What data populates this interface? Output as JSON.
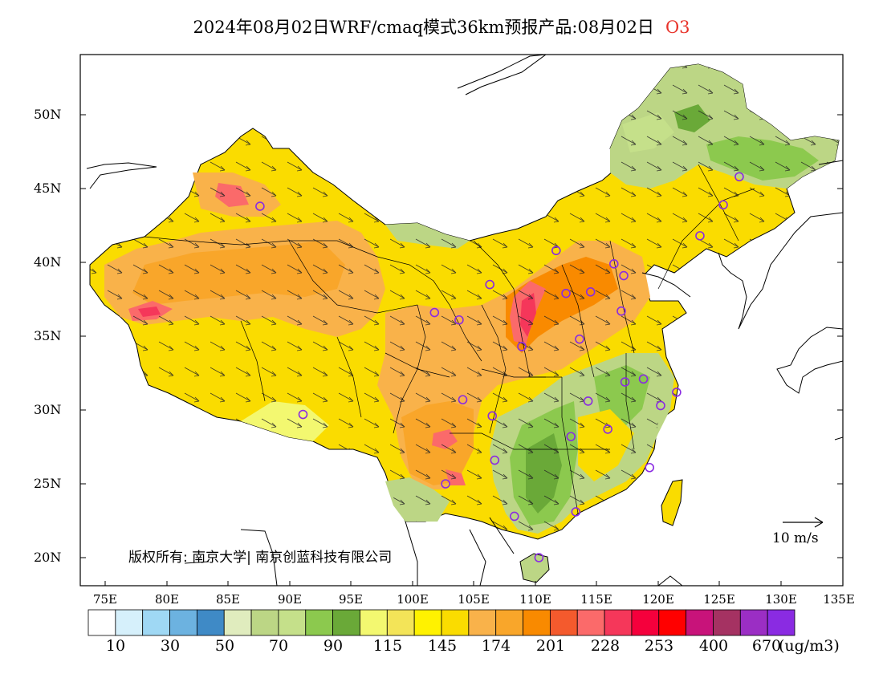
{
  "title": {
    "text": "2024年08月02日WRF/cmaq模式36km预报产品:08月02日",
    "species": "O3",
    "species_color": "#e8332a"
  },
  "axes": {
    "lat_labels": [
      "50N",
      "45N",
      "40N",
      "35N",
      "30N",
      "25N",
      "20N"
    ],
    "lon_labels": [
      "75E",
      "80E",
      "85E",
      "90E",
      "95E",
      "100E",
      "105E",
      "110E",
      "115E",
      "120E",
      "125E",
      "130E",
      "135E"
    ]
  },
  "legend": {
    "colors": [
      "#ffffff",
      "#d6f0fb",
      "#9fd8f4",
      "#6cb2e0",
      "#3f8ac6",
      "#e0ecbe",
      "#bcd685",
      "#c5e08a",
      "#8cc94e",
      "#6aa938",
      "#f3f870",
      "#f3e458",
      "#fff200",
      "#fadc00",
      "#f9b24a",
      "#f9a62a",
      "#f98a00",
      "#f45a2d",
      "#fb6a6a",
      "#f5375a",
      "#f5003c",
      "#ff0000",
      "#c8137a",
      "#a53262",
      "#9b2ec4",
      "#8a2be2"
    ],
    "labels": [
      "10",
      "30",
      "50",
      "70",
      "90",
      "115",
      "145",
      "174",
      "201",
      "228",
      "253",
      "400",
      "670"
    ],
    "unit": "(ug/m3)"
  },
  "wind_scale": {
    "label": "10 m/s"
  },
  "copyright": "版权所有: 南京大学| 南京创蓝科技有限公司",
  "stations": [
    [
      87.6,
      43.8
    ],
    [
      91.1,
      29.7
    ],
    [
      101.8,
      36.6
    ],
    [
      103.8,
      36.1
    ],
    [
      106.3,
      38.5
    ],
    [
      108.9,
      34.3
    ],
    [
      111.7,
      40.8
    ],
    [
      112.5,
      37.9
    ],
    [
      114.5,
      38.0
    ],
    [
      116.4,
      39.9
    ],
    [
      117.2,
      39.1
    ],
    [
      117.0,
      36.7
    ],
    [
      113.6,
      34.8
    ],
    [
      114.3,
      30.6
    ],
    [
      112.9,
      28.2
    ],
    [
      115.9,
      28.7
    ],
    [
      117.3,
      31.9
    ],
    [
      118.8,
      32.1
    ],
    [
      120.2,
      30.3
    ],
    [
      121.5,
      31.2
    ],
    [
      119.3,
      26.1
    ],
    [
      113.3,
      23.1
    ],
    [
      108.3,
      22.8
    ],
    [
      110.3,
      20.0
    ],
    [
      106.7,
      26.6
    ],
    [
      102.7,
      25.0
    ],
    [
      104.1,
      30.7
    ],
    [
      106.5,
      29.6
    ],
    [
      123.4,
      41.8
    ],
    [
      125.3,
      43.9
    ],
    [
      126.6,
      45.8
    ]
  ]
}
